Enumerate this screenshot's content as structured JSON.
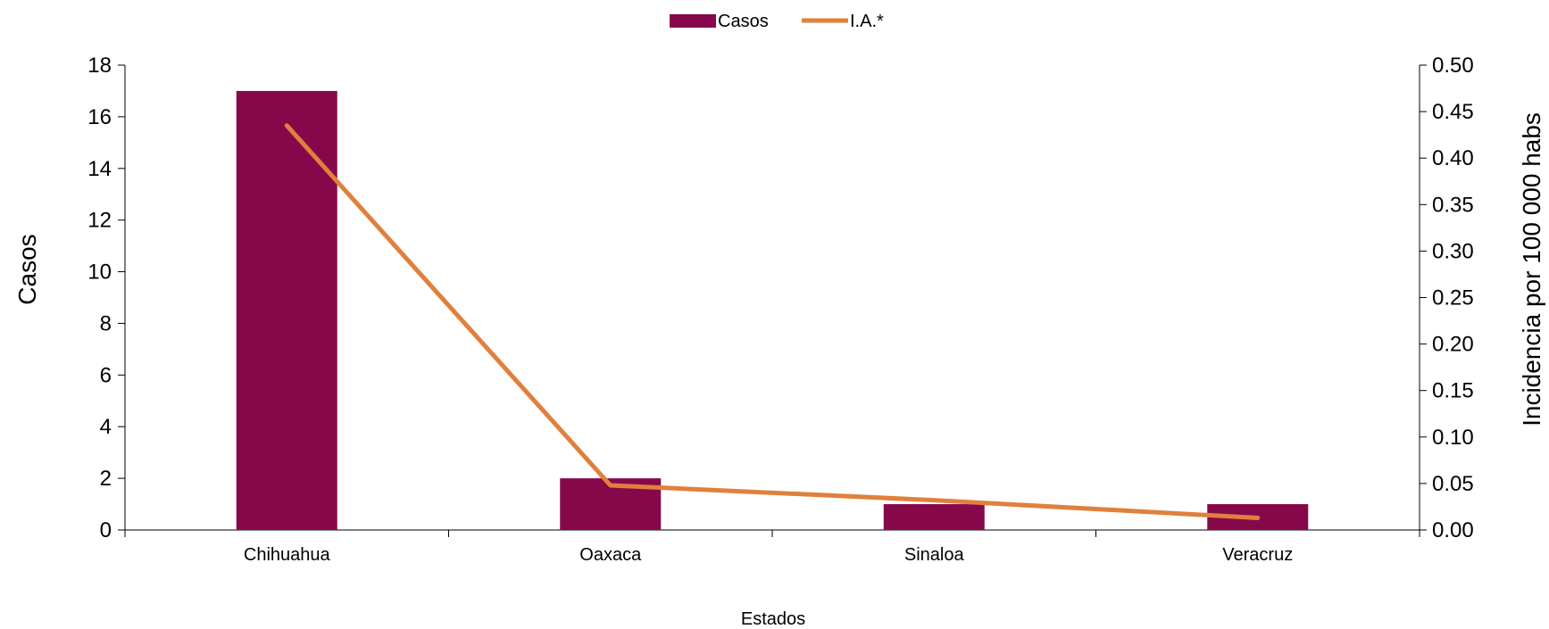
{
  "chart_data": {
    "type": "bar",
    "categories": [
      "Chihuahua",
      "Oaxaca",
      "Sinaloa",
      "Veracruz"
    ],
    "series": [
      {
        "name": "Casos",
        "type": "bar",
        "axis": "left",
        "color": "#87084A",
        "values": [
          17,
          2,
          1,
          1
        ]
      },
      {
        "name": "I.A.*",
        "type": "line",
        "axis": "right",
        "color": "#E0803C",
        "values": [
          0.435,
          0.048,
          0.032,
          0.013
        ]
      }
    ],
    "xlabel": "Estados",
    "ylabel": "Casos",
    "y2label": "Incidencia por 100 000 habs",
    "ylim": [
      0,
      18
    ],
    "y2lim": [
      0,
      0.5
    ],
    "yticks": [
      "0",
      "2",
      "4",
      "6",
      "8",
      "10",
      "12",
      "14",
      "16",
      "18"
    ],
    "y2ticks": [
      "0.00",
      "0.05",
      "0.10",
      "0.15",
      "0.20",
      "0.25",
      "0.30",
      "0.35",
      "0.40",
      "0.45",
      "0.50"
    ],
    "legend_position": "top-center",
    "grid": false
  }
}
